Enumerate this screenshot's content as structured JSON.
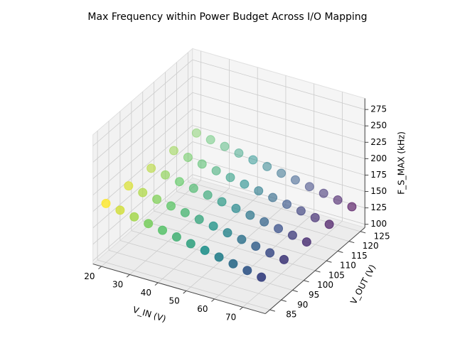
{
  "chart_data": {
    "type": "scatter3d",
    "title": "Max Frequency within Power Budget Across I/O Mapping",
    "xlabel": "V_IN (V)",
    "ylabel": "V_OUT (V)",
    "zlabel": "F_S_MAX (kHz)",
    "colormap": "viridis",
    "x": [
      20,
      20,
      20,
      20,
      20,
      25,
      25,
      25,
      25,
      25,
      30,
      30,
      30,
      30,
      30,
      35,
      35,
      35,
      35,
      35,
      40,
      40,
      40,
      40,
      40,
      45,
      45,
      45,
      45,
      45,
      50,
      50,
      50,
      50,
      50,
      55,
      55,
      55,
      55,
      55,
      60,
      60,
      60,
      60,
      60,
      65,
      65,
      65,
      65,
      65,
      70,
      70,
      70,
      70,
      70,
      75,
      75,
      75,
      75,
      75
    ],
    "y": [
      85,
      95,
      105,
      115,
      125,
      85,
      95,
      105,
      115,
      125,
      85,
      95,
      105,
      115,
      125,
      85,
      95,
      105,
      115,
      125,
      85,
      95,
      105,
      115,
      125,
      85,
      95,
      105,
      115,
      125,
      85,
      95,
      105,
      115,
      125,
      85,
      95,
      105,
      115,
      125,
      85,
      95,
      105,
      115,
      125,
      85,
      95,
      105,
      115,
      125,
      85,
      95,
      105,
      115,
      125,
      85,
      95,
      105,
      115,
      125
    ],
    "z": [
      185,
      182,
      179,
      176,
      173,
      181,
      178,
      175,
      172,
      169,
      177,
      174,
      171,
      168,
      165,
      173,
      170,
      167,
      164,
      161,
      169,
      166,
      163,
      160,
      157,
      165,
      162,
      159,
      156,
      153,
      161,
      158,
      155,
      152,
      149,
      157,
      154,
      151,
      148,
      145,
      153,
      150,
      147,
      144,
      141,
      149,
      146,
      143,
      140,
      137,
      145,
      142,
      139,
      136,
      133,
      141,
      138,
      135,
      132,
      129
    ],
    "xlim": [
      17,
      78
    ],
    "ylim": [
      83,
      127
    ],
    "zlim": [
      95,
      292
    ],
    "xticks": [
      20,
      30,
      40,
      50,
      60,
      70
    ],
    "yticks": [
      85,
      90,
      95,
      100,
      105,
      110,
      115,
      120,
      125
    ],
    "zticks": [
      100,
      125,
      150,
      175,
      200,
      225,
      250,
      275
    ],
    "grid": true
  }
}
